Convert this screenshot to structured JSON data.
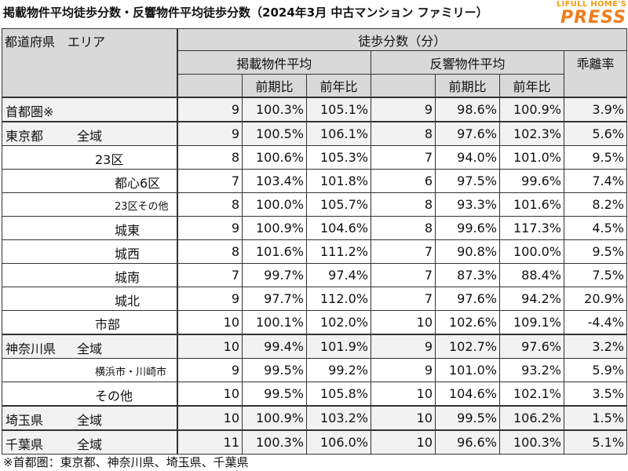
{
  "title": "掲載物件平均徒歩分数・反響物件平均徒歩分数（2024年3月 中古マンション ファミリー）",
  "logo": {
    "top": "LIFULL HOME'S",
    "main": "PRESS"
  },
  "header": {
    "area_col": "都道府県　エリア",
    "walk_group": "徒歩分数（分）",
    "listed": "掲載物件平均",
    "inquiry": "反響物件平均",
    "gap": "乖離率",
    "mom": "前期比",
    "yoy": "前年比"
  },
  "rows": [
    {
      "pref": "首都圏※",
      "area": "",
      "listed": "9",
      "listed_mom": "100.3%",
      "listed_yoy": "105.1%",
      "inq": "9",
      "inq_mom": "98.6%",
      "inq_yoy": "100.9%",
      "gap": "3.9%"
    },
    {
      "pref": "東京都",
      "area": "全域",
      "listed": "9",
      "listed_mom": "100.5%",
      "listed_yoy": "106.1%",
      "inq": "8",
      "inq_mom": "97.6%",
      "inq_yoy": "102.3%",
      "gap": "5.6%"
    },
    {
      "pref": "",
      "area": "23区",
      "listed": "8",
      "listed_mom": "100.6%",
      "listed_yoy": "105.3%",
      "inq": "7",
      "inq_mom": "94.0%",
      "inq_yoy": "101.0%",
      "gap": "9.5%"
    },
    {
      "pref": "",
      "area": "都心6区",
      "listed": "7",
      "listed_mom": "103.4%",
      "listed_yoy": "101.8%",
      "inq": "6",
      "inq_mom": "97.5%",
      "inq_yoy": "99.6%",
      "gap": "7.4%"
    },
    {
      "pref": "",
      "area": "23区その他",
      "listed": "8",
      "listed_mom": "100.0%",
      "listed_yoy": "105.7%",
      "inq": "8",
      "inq_mom": "93.3%",
      "inq_yoy": "101.6%",
      "gap": "8.2%"
    },
    {
      "pref": "",
      "area": "城東",
      "listed": "9",
      "listed_mom": "100.9%",
      "listed_yoy": "104.6%",
      "inq": "8",
      "inq_mom": "99.6%",
      "inq_yoy": "117.3%",
      "gap": "4.5%"
    },
    {
      "pref": "",
      "area": "城西",
      "listed": "8",
      "listed_mom": "101.6%",
      "listed_yoy": "111.2%",
      "inq": "7",
      "inq_mom": "90.8%",
      "inq_yoy": "100.0%",
      "gap": "9.5%"
    },
    {
      "pref": "",
      "area": "城南",
      "listed": "7",
      "listed_mom": "99.7%",
      "listed_yoy": "97.4%",
      "inq": "7",
      "inq_mom": "87.3%",
      "inq_yoy": "88.4%",
      "gap": "7.5%"
    },
    {
      "pref": "",
      "area": "城北",
      "listed": "9",
      "listed_mom": "97.7%",
      "listed_yoy": "112.0%",
      "inq": "7",
      "inq_mom": "97.6%",
      "inq_yoy": "94.2%",
      "gap": "20.9%"
    },
    {
      "pref": "",
      "area": "市部",
      "listed": "10",
      "listed_mom": "100.1%",
      "listed_yoy": "102.0%",
      "inq": "10",
      "inq_mom": "102.6%",
      "inq_yoy": "109.1%",
      "gap": "-4.4%"
    },
    {
      "pref": "神奈川県",
      "area": "全域",
      "listed": "10",
      "listed_mom": "99.4%",
      "listed_yoy": "101.9%",
      "inq": "9",
      "inq_mom": "102.7%",
      "inq_yoy": "97.6%",
      "gap": "3.2%"
    },
    {
      "pref": "",
      "area": "横浜市・川崎市",
      "listed": "9",
      "listed_mom": "99.5%",
      "listed_yoy": "99.2%",
      "inq": "9",
      "inq_mom": "101.0%",
      "inq_yoy": "93.2%",
      "gap": "5.9%"
    },
    {
      "pref": "",
      "area": "その他",
      "listed": "10",
      "listed_mom": "99.5%",
      "listed_yoy": "105.8%",
      "inq": "10",
      "inq_mom": "104.6%",
      "inq_yoy": "102.1%",
      "gap": "3.5%"
    },
    {
      "pref": "埼玉県",
      "area": "全域",
      "listed": "10",
      "listed_mom": "100.9%",
      "listed_yoy": "103.2%",
      "inq": "10",
      "inq_mom": "99.5%",
      "inq_yoy": "106.2%",
      "gap": "1.5%"
    },
    {
      "pref": "千葉県",
      "area": "全域",
      "listed": "11",
      "listed_mom": "100.3%",
      "listed_yoy": "106.0%",
      "inq": "10",
      "inq_mom": "96.6%",
      "inq_yoy": "100.3%",
      "gap": "5.1%"
    }
  ],
  "footnote": "※首都圏：東京都、神奈川県、埼玉県、千葉県"
}
